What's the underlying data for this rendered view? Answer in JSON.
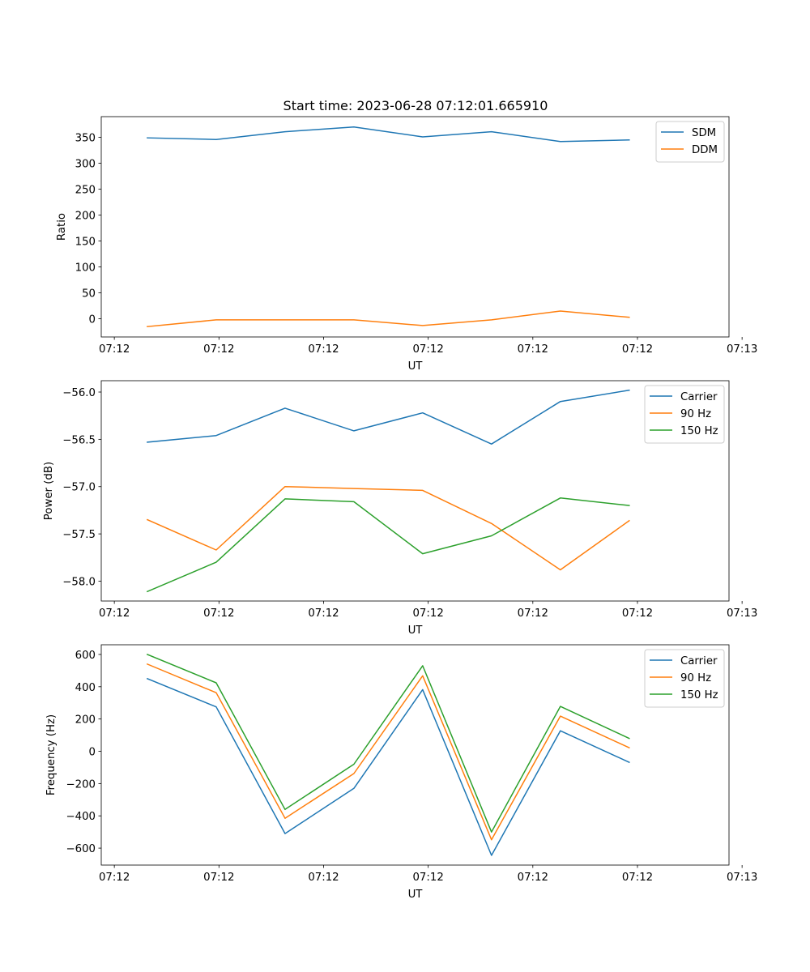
{
  "title": "Start time: 2023-06-28 07:12:01.665910",
  "colors": {
    "blue": "#1f77b4",
    "orange": "#ff7f0e",
    "green": "#2ca02c"
  },
  "chart_data": [
    {
      "type": "line",
      "title": "Start time: 2023-06-28 07:12:01.665910",
      "xlabel": "UT",
      "ylabel": "Ratio",
      "x": [
        1,
        2,
        3,
        4,
        5,
        6,
        7,
        8
      ],
      "xlim": [
        0.33,
        9.45
      ],
      "xticks": [
        0.52,
        2.04,
        3.56,
        5.08,
        6.6,
        8.12,
        9.64
      ],
      "xtick_labels": [
        "07:12",
        "07:12",
        "07:12",
        "07:12",
        "07:12",
        "07:12",
        "07:13"
      ],
      "ylim": [
        -35,
        390
      ],
      "yticks": [
        0,
        50,
        100,
        150,
        200,
        250,
        300,
        350
      ],
      "ytick_labels": [
        "0",
        "50",
        "100",
        "150",
        "200",
        "250",
        "300",
        "350"
      ],
      "legend": "upper right",
      "series": [
        {
          "name": "SDM",
          "color": "#1f77b4",
          "values": [
            349,
            346,
            361,
            370,
            351,
            361,
            342,
            345
          ]
        },
        {
          "name": "DDM",
          "color": "#ff7f0e",
          "values": [
            -15,
            -2,
            -2,
            -2,
            -13,
            -2,
            15,
            3
          ]
        }
      ]
    },
    {
      "type": "line",
      "xlabel": "UT",
      "ylabel": "Power (dB)",
      "x": [
        1,
        2,
        3,
        4,
        5,
        6,
        7,
        8
      ],
      "xlim": [
        0.33,
        9.45
      ],
      "xticks": [
        0.52,
        2.04,
        3.56,
        5.08,
        6.6,
        8.12,
        9.64
      ],
      "xtick_labels": [
        "07:12",
        "07:12",
        "07:12",
        "07:12",
        "07:12",
        "07:12",
        "07:13"
      ],
      "ylim": [
        -58.21,
        -55.88
      ],
      "yticks": [
        -58.0,
        -57.5,
        -57.0,
        -56.5,
        -56.0
      ],
      "ytick_labels": [
        "−58.0",
        "−57.5",
        "−57.0",
        "−56.5",
        "−56.0"
      ],
      "legend": "upper right",
      "series": [
        {
          "name": "Carrier",
          "color": "#1f77b4",
          "values": [
            -56.53,
            -56.46,
            -56.17,
            -56.41,
            -56.22,
            -56.55,
            -56.1,
            -55.98
          ]
        },
        {
          "name": "90 Hz",
          "color": "#ff7f0e",
          "values": [
            -57.35,
            -57.67,
            -57.0,
            -57.02,
            -57.04,
            -57.39,
            -57.88,
            -57.36
          ]
        },
        {
          "name": "150 Hz",
          "color": "#2ca02c",
          "values": [
            -58.11,
            -57.8,
            -57.13,
            -57.16,
            -57.71,
            -57.52,
            -57.12,
            -57.2
          ]
        }
      ]
    },
    {
      "type": "line",
      "xlabel": "UT",
      "ylabel": "Frequency (Hz)",
      "x": [
        1,
        2,
        3,
        4,
        5,
        6,
        7,
        8
      ],
      "xlim": [
        0.33,
        9.45
      ],
      "xticks": [
        0.52,
        2.04,
        3.56,
        5.08,
        6.6,
        8.12,
        9.64
      ],
      "xtick_labels": [
        "07:12",
        "07:12",
        "07:12",
        "07:12",
        "07:12",
        "07:12",
        "07:13"
      ],
      "ylim": [
        -705,
        660
      ],
      "yticks": [
        -600,
        -400,
        -200,
        0,
        200,
        400,
        600
      ],
      "ytick_labels": [
        "−600",
        "−400",
        "−200",
        "0",
        "200",
        "400",
        "600"
      ],
      "legend": "upper right",
      "series": [
        {
          "name": "Carrier",
          "color": "#1f77b4",
          "values": [
            450,
            275,
            -510,
            -230,
            382,
            -645,
            127,
            -68
          ]
        },
        {
          "name": "90 Hz",
          "color": "#ff7f0e",
          "values": [
            540,
            363,
            -415,
            -138,
            468,
            -548,
            218,
            22
          ]
        },
        {
          "name": "150 Hz",
          "color": "#2ca02c",
          "values": [
            600,
            424,
            -360,
            -80,
            530,
            -500,
            278,
            80
          ]
        }
      ]
    }
  ]
}
